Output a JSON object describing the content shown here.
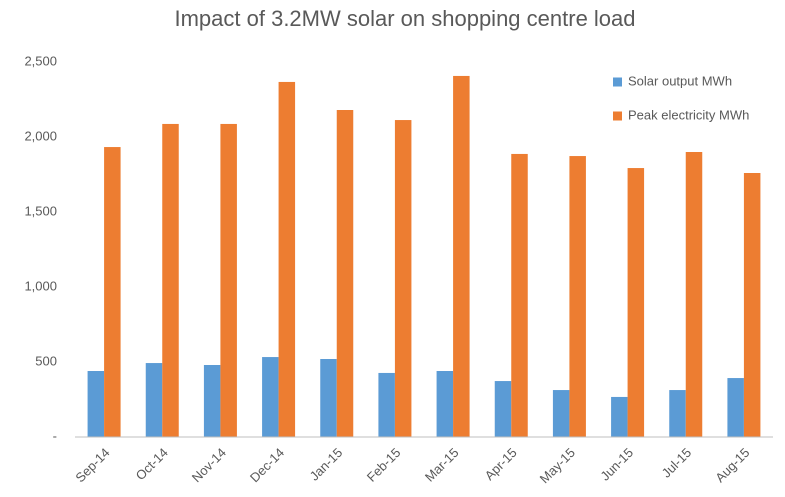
{
  "chart_data": {
    "type": "bar",
    "title": "Impact of 3.2MW solar on shopping centre load",
    "categories": [
      "Sep-14",
      "Oct-14",
      "Nov-14",
      "Dec-14",
      "Jan-15",
      "Feb-15",
      "Mar-15",
      "Apr-15",
      "May-15",
      "Jun-15",
      "Jul-15",
      "Aug-15"
    ],
    "series": [
      {
        "name": "Solar output MWh",
        "color": "#5b9bd5",
        "values": [
          440,
          493,
          480,
          533,
          520,
          427,
          440,
          373,
          313,
          267,
          313,
          393
        ]
      },
      {
        "name": "Peak electricity MWh",
        "color": "#ed7d31",
        "values": [
          1933,
          2087,
          2087,
          2367,
          2180,
          2113,
          2407,
          1887,
          1873,
          1793,
          1900,
          1760
        ]
      }
    ],
    "ylim": [
      0,
      2500
    ],
    "yticks": [
      {
        "value": 0,
        "label": "-"
      },
      500,
      {
        "value": 1000,
        "label": "1,000"
      },
      {
        "value": 1500,
        "label": "1,500"
      },
      {
        "value": 2000,
        "label": "2,000"
      },
      {
        "value": 2500,
        "label": "2,500"
      }
    ],
    "grid": false,
    "legend": "top-right"
  }
}
